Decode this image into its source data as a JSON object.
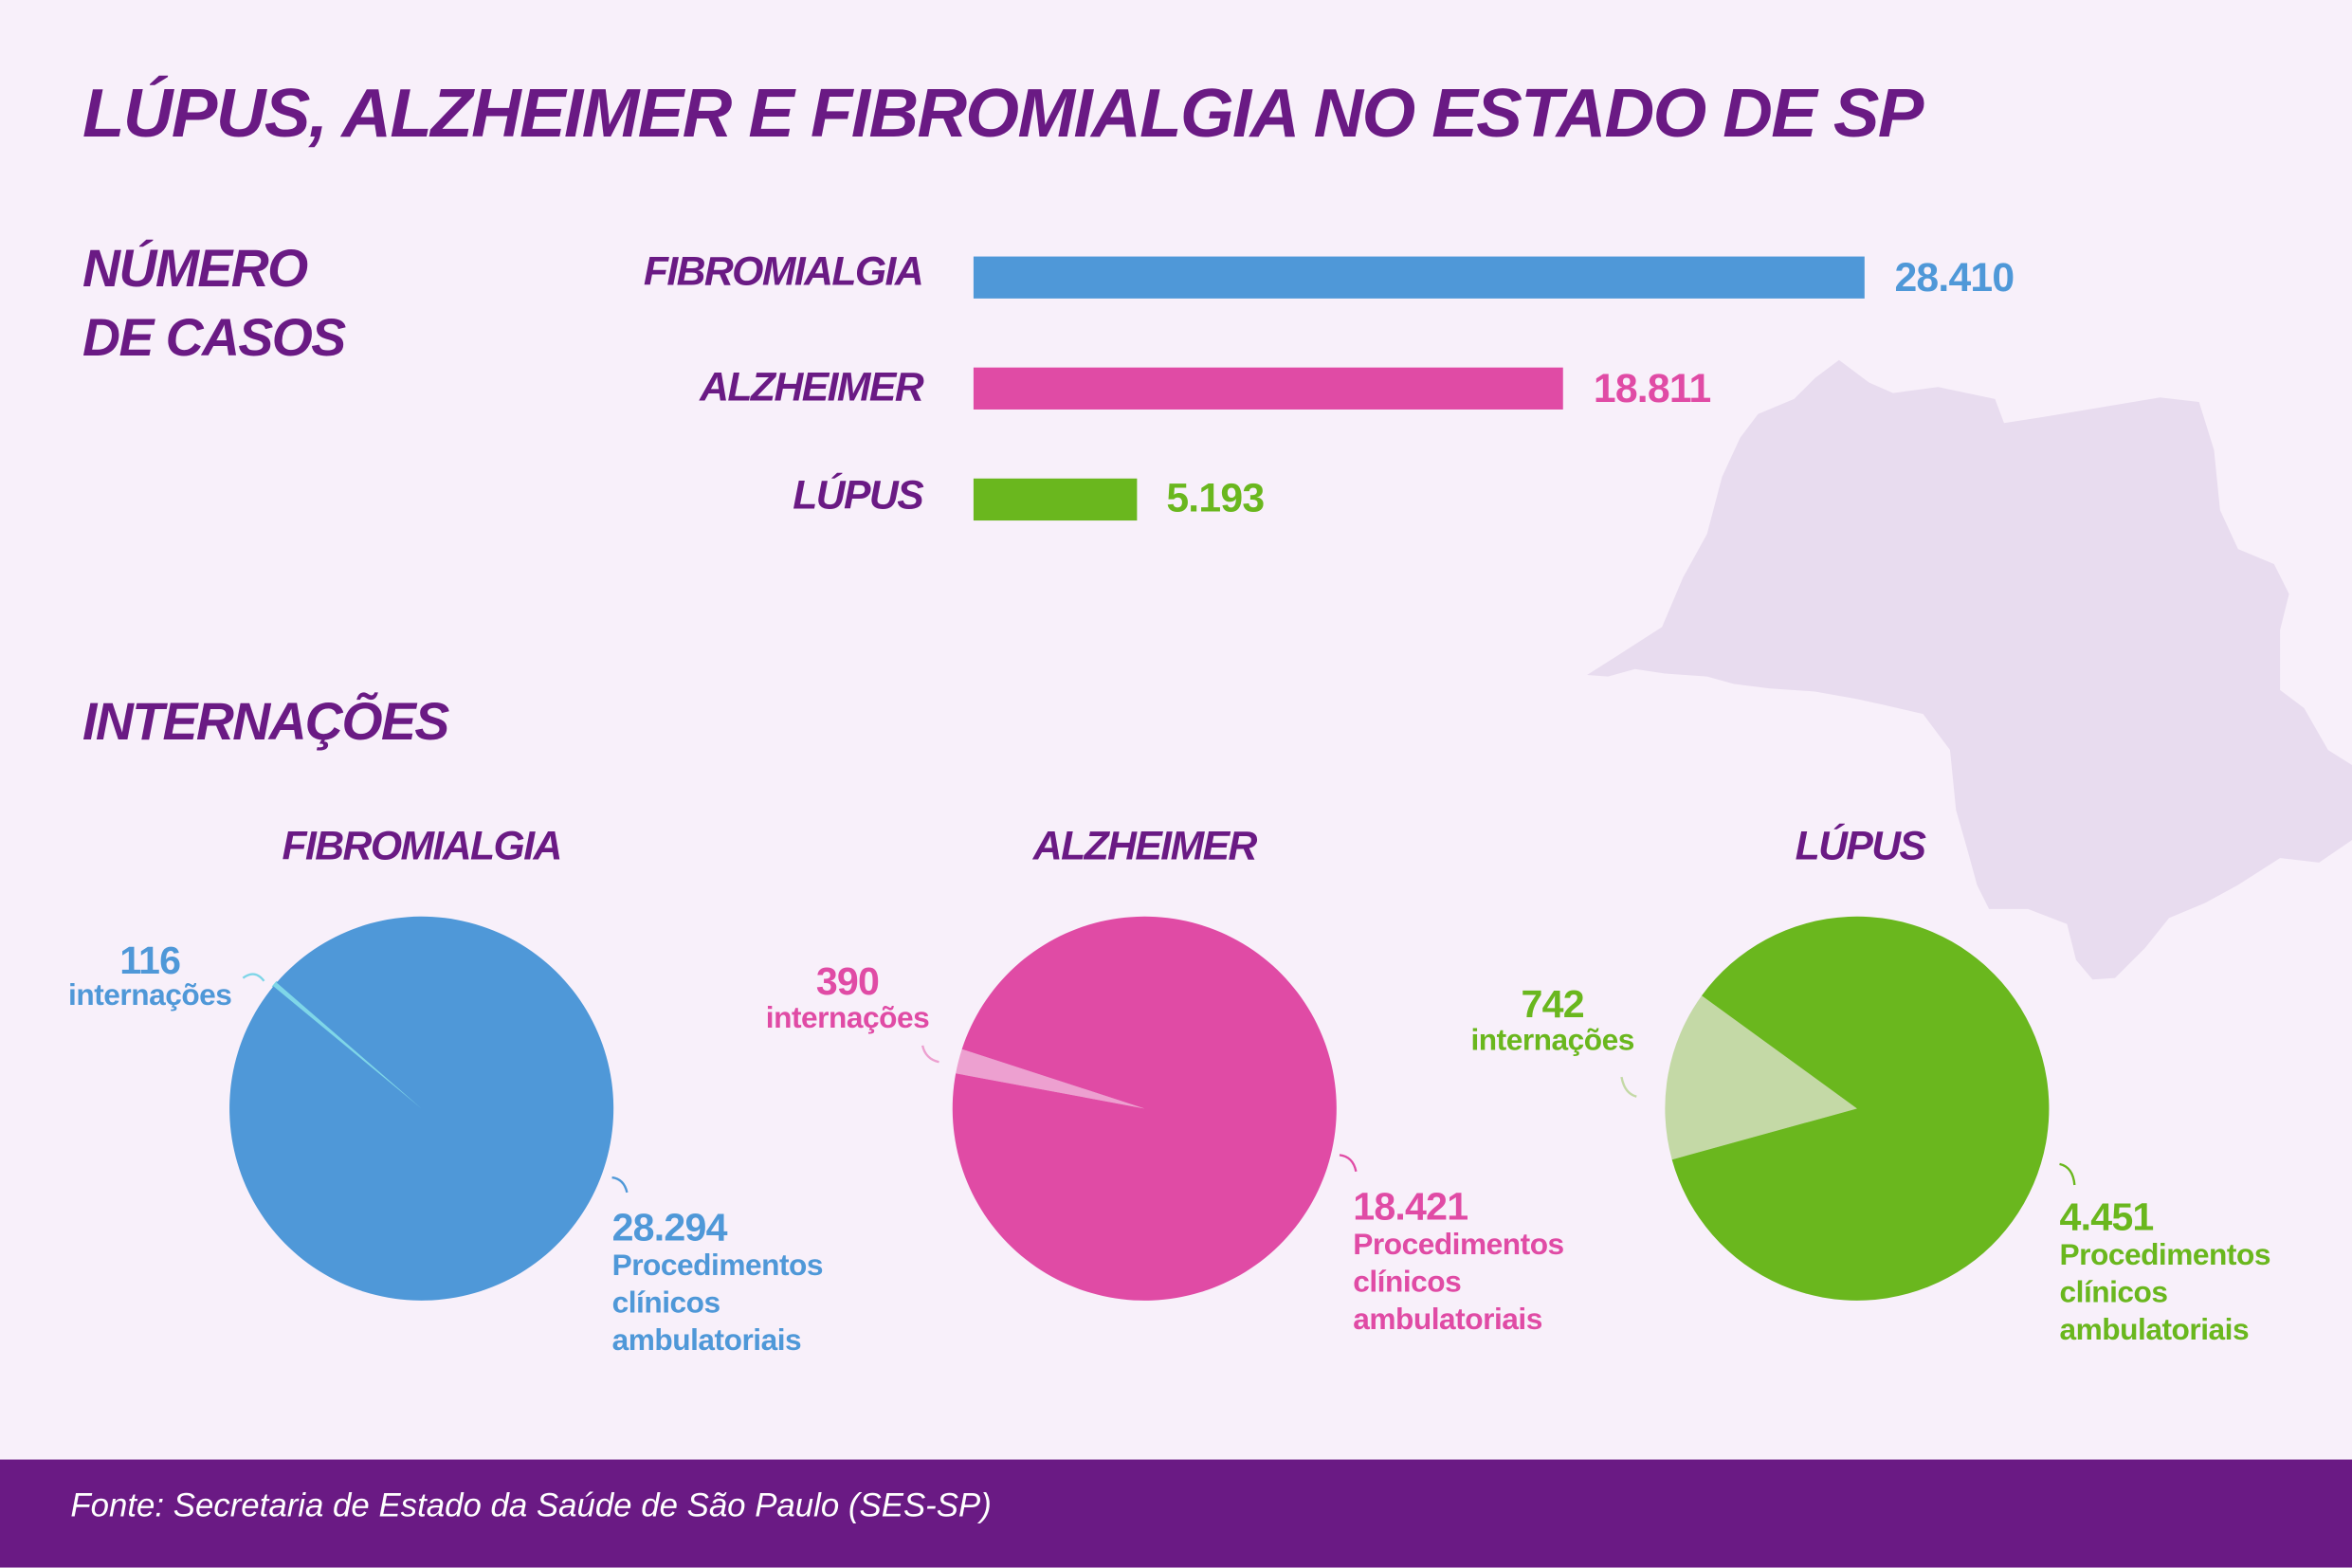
{
  "title": "LÚPUS, ALZHEIMER E FIBROMIALGIA NO ESTADO DE SP",
  "section_cases": [
    "NÚMERO",
    "DE CASOS"
  ],
  "section_hosp": "INTERNAÇÕES",
  "footer": "Fonte: Secretaria de Estado da Saúde de São Paulo (SES-SP)",
  "colors": {
    "purple": "#6a1a84",
    "blue": "#4f98d8",
    "pink": "#e04ba5",
    "green": "#6ab71e",
    "map": "#e8dcef",
    "background": "#f8f0fa"
  },
  "chart_data": [
    {
      "type": "bar",
      "title": "NÚMERO DE CASOS",
      "categories": [
        "FIBROMIALGIA",
        "ALZHEIMER",
        "LÚPUS"
      ],
      "values": [
        28410,
        18811,
        5193
      ],
      "value_labels": [
        "28.410",
        "18.811",
        "5.193"
      ],
      "colors": [
        "#4f98d8",
        "#e04ba5",
        "#6ab71e"
      ],
      "orientation": "horizontal"
    },
    {
      "type": "pie",
      "title": "FIBROMIALGIA",
      "slices": [
        {
          "label": "internações",
          "value": 116,
          "value_label": "116",
          "color": "#7fd6e8"
        },
        {
          "label": "Procedimentos clínicos ambulatoriais",
          "value": 28294,
          "value_label": "28.294",
          "color": "#4f98d8"
        }
      ],
      "text_lines": [
        "Procedimentos",
        "clínicos",
        "ambulatoriais"
      ]
    },
    {
      "type": "pie",
      "title": "ALZHEIMER",
      "slices": [
        {
          "label": "internações",
          "value": 390,
          "value_label": "390",
          "color": "#eda0d0"
        },
        {
          "label": "Procedimentos clínicos ambulatoriais",
          "value": 18421,
          "value_label": "18.421",
          "color": "#e04ba5"
        }
      ],
      "text_lines": [
        "Procedimentos",
        "clínicos",
        "ambulatoriais"
      ]
    },
    {
      "type": "pie",
      "title": "LÚPUS",
      "slices": [
        {
          "label": "internações",
          "value": 742,
          "value_label": "742",
          "color": "#c4d9a6"
        },
        {
          "label": "Procedimentos clínicos ambulatoriais",
          "value": 4451,
          "value_label": "4.451",
          "color": "#6ab71e"
        }
      ],
      "text_lines": [
        "Procedimentos",
        "clínicos",
        "ambulatoriais"
      ]
    }
  ]
}
